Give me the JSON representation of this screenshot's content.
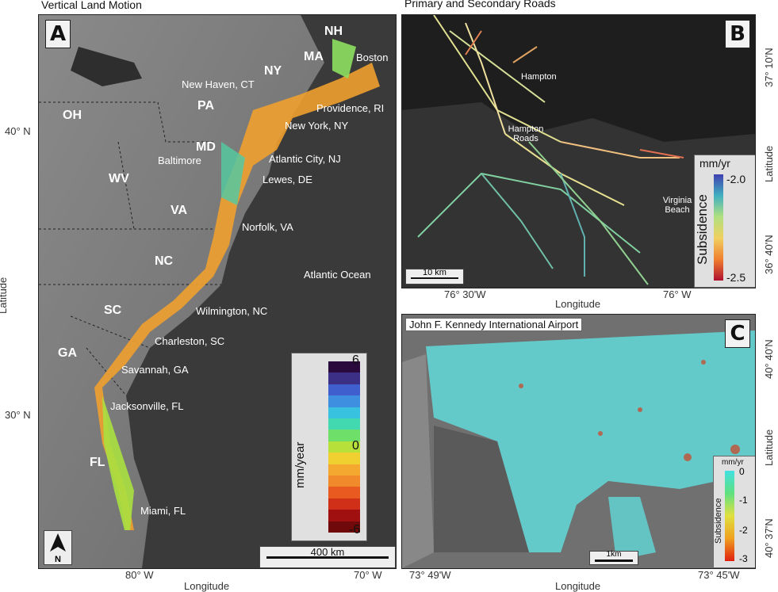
{
  "panel_a": {
    "title": "Vertical Land Motion",
    "letter": "A",
    "states": [
      "NH",
      "MA",
      "NY",
      "PA",
      "OH",
      "MD",
      "WV",
      "VA",
      "NC",
      "SC",
      "GA",
      "FL"
    ],
    "cities": [
      "Boston",
      "New Haven, CT",
      "Providence, RI",
      "New York, NY",
      "Atlantic City, NJ",
      "Baltimore",
      "Lewes, DE",
      "Norfolk, VA",
      "Atlantic Ocean",
      "Wilmington, NC",
      "Charleston, SC",
      "Savannah, GA",
      "Jacksonville, FL",
      "Miami, FL"
    ],
    "legend": {
      "label": "mm/year",
      "ticks": [
        "6",
        "0",
        "-6"
      ],
      "colors": [
        "#2a0a3c",
        "#3b2f86",
        "#3f5fcf",
        "#3f8fe0",
        "#38c2e0",
        "#42d8b0",
        "#6ee06a",
        "#b8e03a",
        "#f0d030",
        "#f4a830",
        "#f08a2a",
        "#e85a20",
        "#d03018",
        "#a01010",
        "#700a0a"
      ]
    },
    "scale": "400 km",
    "north": "N",
    "lat_ticks": [
      "40° N",
      "30° N"
    ],
    "lon_ticks": [
      "80° W",
      "70° W"
    ],
    "xlabel": "Longitude",
    "ylabel": "Latitude"
  },
  "panel_b": {
    "title": "Primary and Secondary Roads",
    "letter": "B",
    "places": [
      "Hampton",
      "Hampton Roads",
      "Virginia Beach"
    ],
    "legend": {
      "unit": "mm/yr",
      "label": "Subsidence",
      "ticks": [
        "-2.0",
        "-2.5"
      ]
    },
    "scale": "10 km",
    "lat_ticks": [
      "37° 10'N",
      "36° 40'N"
    ],
    "lon_ticks": [
      "76° 30'W",
      "76° W"
    ],
    "xlabel": "Longitude",
    "ylabel": "Latitude"
  },
  "panel_c": {
    "title": "John F. Kennedy International Airport",
    "letter": "C",
    "legend": {
      "unit": "mm/yr",
      "label": "Subsidence",
      "ticks": [
        "0",
        "-1",
        "-2",
        "-3"
      ]
    },
    "scale": "1km",
    "lat_ticks": [
      "40° 40'N",
      "40° 37'N"
    ],
    "lon_ticks": [
      "73° 49'W",
      "73° 45'W"
    ],
    "xlabel": "Longitude",
    "ylabel": "Latitude"
  }
}
